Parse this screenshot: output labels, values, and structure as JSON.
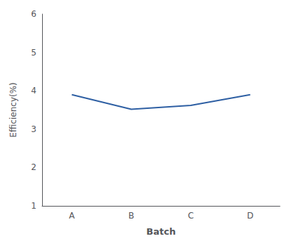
{
  "chart_data": {
    "type": "line",
    "categories": [
      "A",
      "B",
      "C",
      "D"
    ],
    "values": [
      3.9,
      3.52,
      3.62,
      3.9
    ],
    "color": "#2e5fa3",
    "xlabel": "Batch",
    "ylabel": "Efficiency(%)",
    "ylim": [
      1,
      6
    ],
    "yticks": [
      1,
      2,
      3,
      4,
      5,
      6
    ],
    "grid": false
  }
}
